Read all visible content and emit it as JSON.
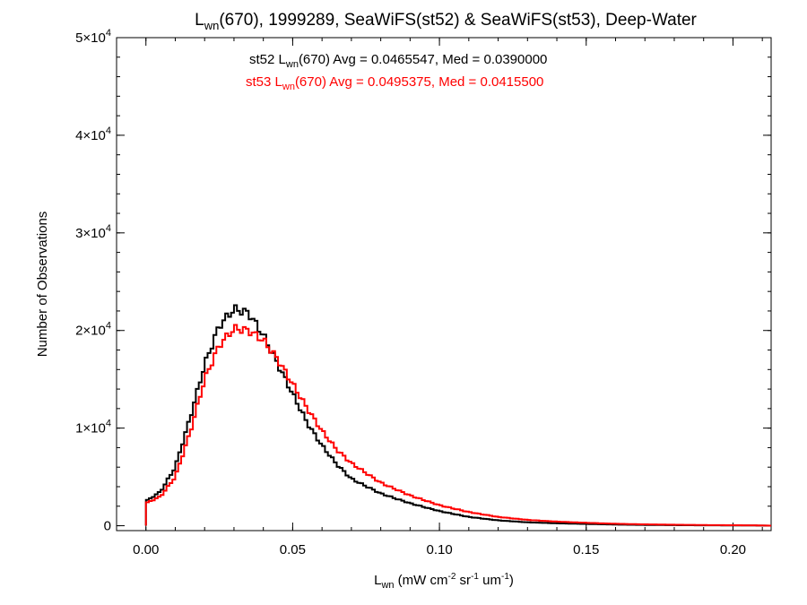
{
  "chart_data": {
    "type": "line",
    "title": {
      "prefix": "L",
      "sub": "wn",
      "rest": "(670), 1999289, SeaWiFS(st52) & SeaWiFS(st53), Deep-Water"
    },
    "xlabel": {
      "prefix": "L",
      "sub": "wn",
      "p1": " (mW cm",
      "sup1": "-2",
      "p2": " sr",
      "sup2": "-1",
      "p3": " um",
      "sup3": "-1",
      "p4": ")"
    },
    "ylabel": "Number of Observations",
    "xlim": [
      -0.01,
      0.213
    ],
    "ylim": [
      -500,
      50000
    ],
    "x_ticks": [
      {
        "value": 0.0,
        "label": "0.00"
      },
      {
        "value": 0.05,
        "label": "0.05"
      },
      {
        "value": 0.1,
        "label": "0.10"
      },
      {
        "value": 0.15,
        "label": "0.15"
      },
      {
        "value": 0.2,
        "label": "0.20"
      }
    ],
    "y_ticks": [
      {
        "value": 0,
        "base": "0",
        "exp": ""
      },
      {
        "value": 10000,
        "base": "1×10",
        "exp": "4"
      },
      {
        "value": 20000,
        "base": "2×10",
        "exp": "4"
      },
      {
        "value": 30000,
        "base": "3×10",
        "exp": "4"
      },
      {
        "value": 40000,
        "base": "4×10",
        "exp": "4"
      },
      {
        "value": 50000,
        "base": "5×10",
        "exp": "4"
      }
    ],
    "series": [
      {
        "name": "st52",
        "color": "#000000",
        "stat": {
          "pre": "st52 L",
          "sub": "wn",
          "post": "(670) Avg = 0.0465547, Med = 0.0390000"
        },
        "points": [
          [
            0.0,
            0
          ],
          [
            0.0,
            2500
          ],
          [
            0.005,
            3500
          ],
          [
            0.01,
            6000
          ],
          [
            0.015,
            11000
          ],
          [
            0.02,
            16500
          ],
          [
            0.025,
            20500
          ],
          [
            0.03,
            22200
          ],
          [
            0.035,
            21800
          ],
          [
            0.04,
            19500
          ],
          [
            0.045,
            16500
          ],
          [
            0.05,
            13500
          ],
          [
            0.055,
            10500
          ],
          [
            0.06,
            8200
          ],
          [
            0.065,
            6300
          ],
          [
            0.07,
            4800
          ],
          [
            0.08,
            3300
          ],
          [
            0.09,
            2300
          ],
          [
            0.1,
            1500
          ],
          [
            0.11,
            900
          ],
          [
            0.12,
            550
          ],
          [
            0.13,
            350
          ],
          [
            0.14,
            250
          ],
          [
            0.15,
            180
          ],
          [
            0.16,
            120
          ],
          [
            0.17,
            80
          ],
          [
            0.18,
            60
          ],
          [
            0.19,
            40
          ],
          [
            0.2,
            30
          ],
          [
            0.21,
            20
          ]
        ]
      },
      {
        "name": "st53",
        "color": "#ff0000",
        "stat": {
          "pre": "st53 L",
          "sub": "wn",
          "post": "(670) Avg = 0.0495375, Med = 0.0415500"
        },
        "points": [
          [
            0.0,
            0
          ],
          [
            0.0,
            2300
          ],
          [
            0.005,
            3000
          ],
          [
            0.01,
            5000
          ],
          [
            0.015,
            9500
          ],
          [
            0.02,
            15000
          ],
          [
            0.025,
            18500
          ],
          [
            0.03,
            20200
          ],
          [
            0.035,
            20000
          ],
          [
            0.04,
            19000
          ],
          [
            0.045,
            17000
          ],
          [
            0.05,
            14500
          ],
          [
            0.055,
            12000
          ],
          [
            0.06,
            9700
          ],
          [
            0.065,
            7800
          ],
          [
            0.07,
            6400
          ],
          [
            0.08,
            4400
          ],
          [
            0.09,
            3100
          ],
          [
            0.1,
            2100
          ],
          [
            0.11,
            1400
          ],
          [
            0.12,
            900
          ],
          [
            0.13,
            600
          ],
          [
            0.14,
            420
          ],
          [
            0.15,
            300
          ],
          [
            0.16,
            200
          ],
          [
            0.17,
            140
          ],
          [
            0.18,
            100
          ],
          [
            0.19,
            70
          ],
          [
            0.2,
            50
          ],
          [
            0.21,
            30
          ]
        ]
      }
    ]
  }
}
